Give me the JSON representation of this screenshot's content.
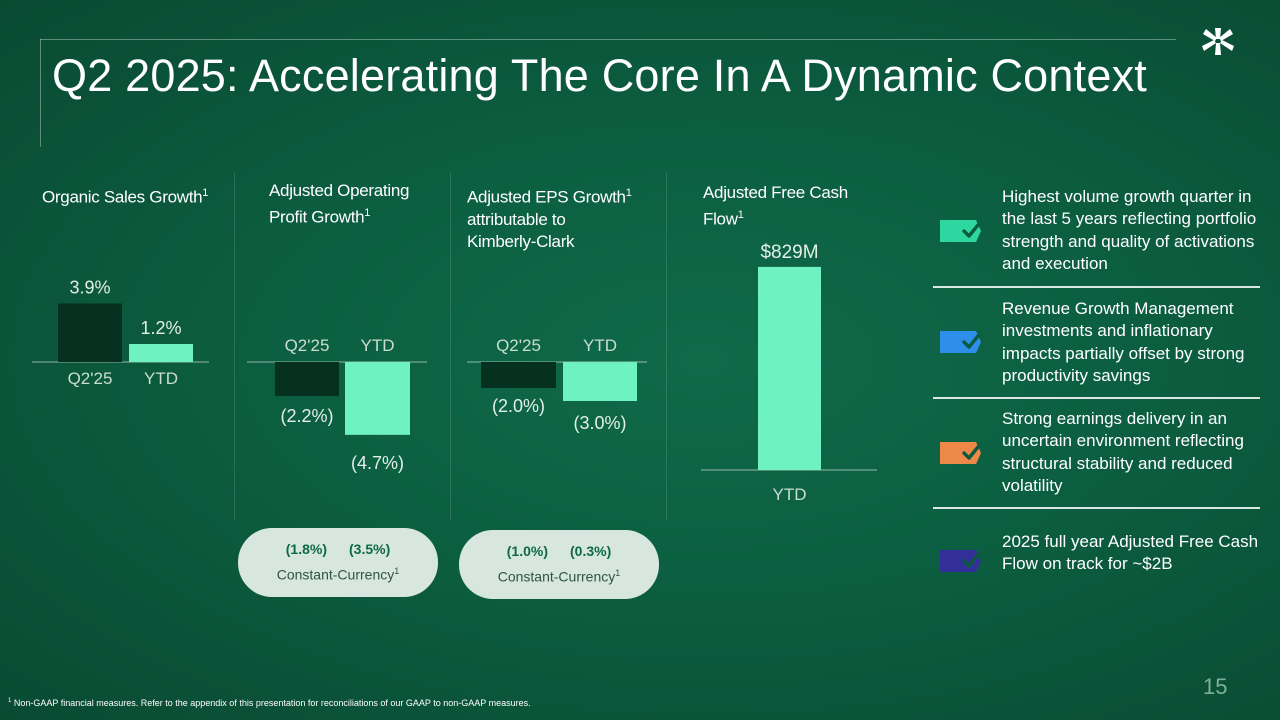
{
  "slide": {
    "title": "Q2 2025: Accelerating The Core In A Dynamic Context",
    "page_number": "15",
    "footnote_marker": "1",
    "footnote": "Non-GAAP financial measures. Refer to the appendix of this presentation for reconciliations of our GAAP to non-GAAP measures.",
    "logo_icon": "asterisk-logo-icon"
  },
  "colors": {
    "background": "#0c5e41",
    "dark_bar": "#06301f",
    "light_bar": "#6ef2c2",
    "pill_bg": "#d7e6df",
    "pill_value": "#0e6a45"
  },
  "panels": {
    "organic": {
      "title": "Organic Sales Growth",
      "sup": "1"
    },
    "aop": {
      "title_line1": "Adjusted Operating",
      "title_line2": "Profit Growth",
      "sup": "1"
    },
    "eps": {
      "title_line1": "Adjusted EPS Growth",
      "title_line2": "attributable to",
      "title_line3": "Kimberly-Clark",
      "sup": "1"
    },
    "fcf": {
      "title_line1": "Adjusted Free Cash",
      "title_line2": "Flow",
      "sup": "1"
    }
  },
  "constant_currency": {
    "label": "Constant-Currency",
    "sup": "1",
    "aop": {
      "q2": "(1.8%)",
      "ytd": "(3.5%)"
    },
    "eps": {
      "q2": "(1.0%)",
      "ytd": "(0.3%)"
    }
  },
  "chart_data": [
    {
      "type": "bar",
      "title": "Organic Sales Growth",
      "categories": [
        "Q2'25",
        "YTD"
      ],
      "values": [
        3.9,
        1.2
      ],
      "labels": [
        "3.9%",
        "1.2%"
      ],
      "unit": "%"
    },
    {
      "type": "bar",
      "title": "Adjusted Operating Profit Growth",
      "categories": [
        "Q2'25",
        "YTD"
      ],
      "values": [
        -2.2,
        -4.7
      ],
      "labels": [
        "(2.2%)",
        "(4.7%)"
      ],
      "unit": "%"
    },
    {
      "type": "bar",
      "title": "Adjusted EPS Growth attributable to Kimberly-Clark",
      "categories": [
        "Q2'25",
        "YTD"
      ],
      "values": [
        -2.0,
        -3.0
      ],
      "labels": [
        "(2.0%)",
        "(3.0%)"
      ],
      "unit": "%"
    },
    {
      "type": "bar",
      "title": "Adjusted Free Cash Flow",
      "categories": [
        "YTD"
      ],
      "values": [
        829
      ],
      "labels": [
        "$829M"
      ],
      "unit": "$M"
    }
  ],
  "highlights": [
    {
      "text": "Highest volume growth quarter in the last 5 years reflecting portfolio strength and quality of activations and execution",
      "icon": "check-tag-icon",
      "color": "#2ed7a0"
    },
    {
      "text": "Revenue Growth Management investments and inflationary impacts partially offset by strong productivity savings",
      "icon": "check-tag-icon",
      "color": "#2e8fea"
    },
    {
      "text": "Strong earnings delivery in an uncertain environment reflecting structural stability and reduced volatility",
      "icon": "check-tag-icon",
      "color": "#ee8848"
    },
    {
      "text": "2025 full year Adjusted Free Cash Flow  on track for ~$2B",
      "icon": "check-tag-icon",
      "color": "#332f98"
    }
  ]
}
